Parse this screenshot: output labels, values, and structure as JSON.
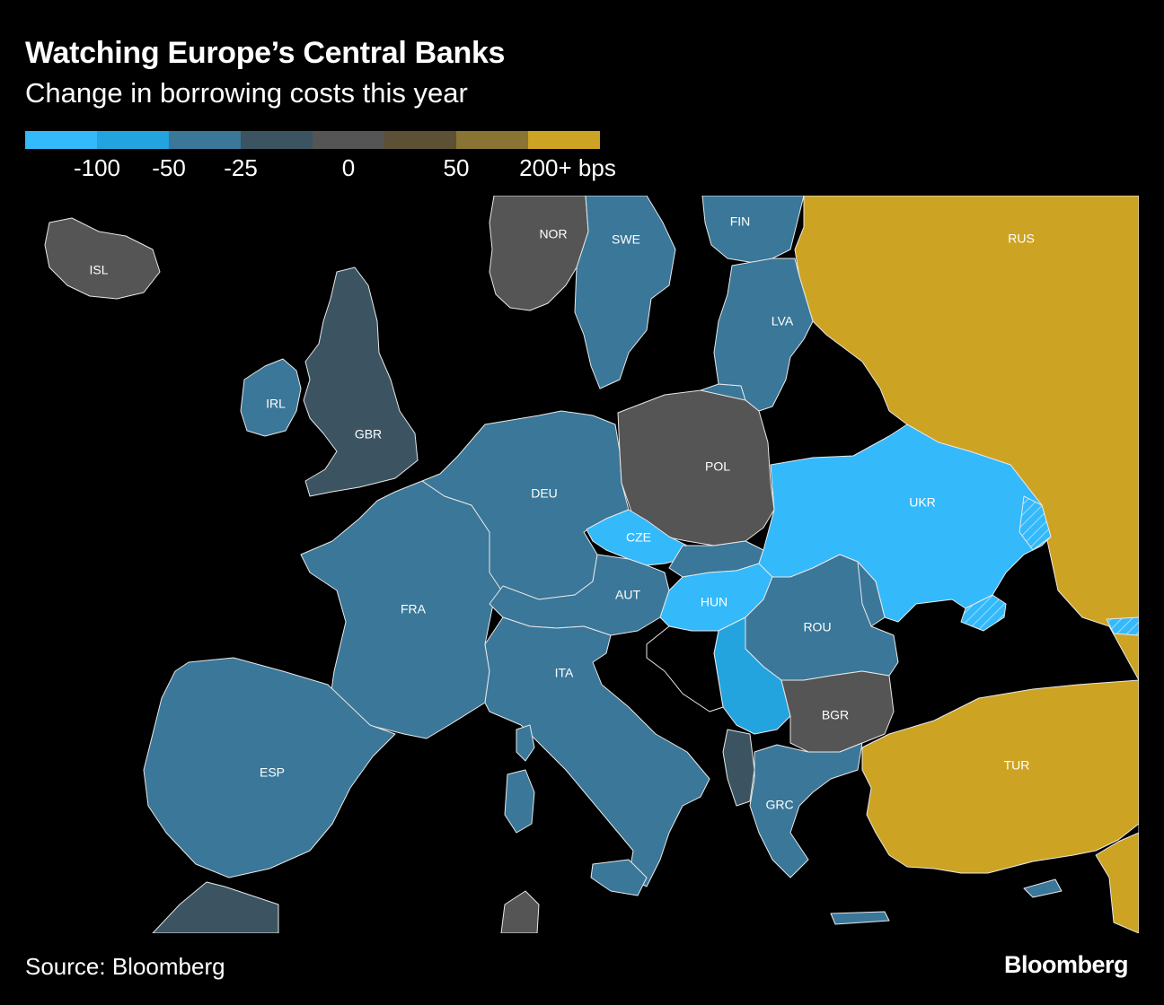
{
  "title": "Watching Europe’s Central Banks",
  "subtitle": "Change in borrowing costs this year",
  "legend": {
    "colors": [
      "#34b9fb",
      "#23a4df",
      "#3a7799",
      "#3c5462",
      "#555555",
      "#5c5035",
      "#8a7433",
      "#cda323"
    ],
    "ticks": [
      "-100",
      "-50",
      "-25",
      "0",
      "50",
      "200+ bps"
    ]
  },
  "map": {
    "water_color": "#000000",
    "border_color": "#e8e8e8",
    "countries": [
      {
        "code": "ISL",
        "label": "ISL",
        "color": "#555555"
      },
      {
        "code": "NOR",
        "label": "NOR",
        "color": "#555555"
      },
      {
        "code": "SWE",
        "label": "SWE",
        "color": "#3a7799"
      },
      {
        "code": "FIN",
        "label": "FIN",
        "color": "#3a7799"
      },
      {
        "code": "RUS",
        "label": "RUS",
        "color": "#cda323"
      },
      {
        "code": "LVA",
        "label": "LVA",
        "color": "#3a7799"
      },
      {
        "code": "IRL",
        "label": "IRL",
        "color": "#3a7799"
      },
      {
        "code": "GBR",
        "label": "GBR",
        "color": "#3c5462"
      },
      {
        "code": "DEU",
        "label": "DEU",
        "color": "#3a7799"
      },
      {
        "code": "POL",
        "label": "POL",
        "color": "#555555"
      },
      {
        "code": "UKR",
        "label": "UKR",
        "color": "#34b9fb"
      },
      {
        "code": "CZE",
        "label": "CZE",
        "color": "#34b9fb"
      },
      {
        "code": "FRA",
        "label": "FRA",
        "color": "#3a7799"
      },
      {
        "code": "AUT",
        "label": "AUT",
        "color": "#3a7799"
      },
      {
        "code": "HUN",
        "label": "HUN",
        "color": "#34b9fb"
      },
      {
        "code": "ROU",
        "label": "ROU",
        "color": "#3a7799"
      },
      {
        "code": "ITA",
        "label": "ITA",
        "color": "#3a7799"
      },
      {
        "code": "BGR",
        "label": "BGR",
        "color": "#555555"
      },
      {
        "code": "ESP",
        "label": "ESP",
        "color": "#3a7799"
      },
      {
        "code": "TUR",
        "label": "TUR",
        "color": "#cda323"
      },
      {
        "code": "GRC",
        "label": "GRC",
        "color": "#3a7799"
      }
    ]
  },
  "source": "Source: Bloomberg",
  "brand": "Bloomberg"
}
